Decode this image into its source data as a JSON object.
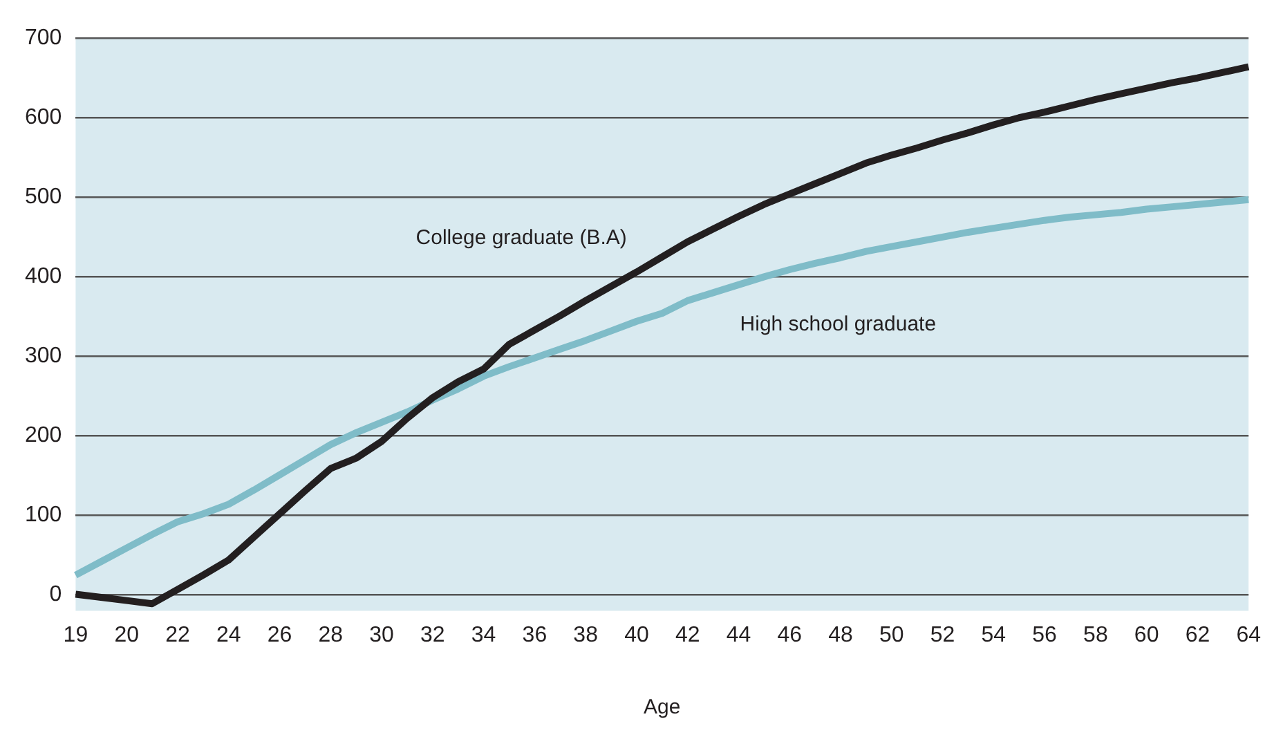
{
  "chart_data": {
    "type": "line",
    "xlabel": "Age",
    "categories": [
      "19",
      null,
      "20",
      null,
      "22",
      null,
      "24",
      null,
      "26",
      null,
      "28",
      null,
      "30",
      null,
      "32",
      null,
      "34",
      null,
      "36",
      null,
      "38",
      null,
      "40",
      null,
      "42",
      null,
      "44",
      null,
      "46",
      null,
      "48",
      null,
      "50",
      null,
      "52",
      null,
      "54",
      null,
      "56",
      null,
      "58",
      null,
      "60",
      null,
      "62",
      null,
      "64"
    ],
    "series": [
      {
        "name": "College graduate (B.A)",
        "color": "#231f20",
        "values": [
          1,
          -3,
          -7,
          -11,
          7,
          25,
          44,
          73,
          102,
          131,
          159,
          172,
          193,
          222,
          248,
          268,
          284,
          315,
          333,
          351,
          370,
          388,
          406,
          425,
          444,
          460,
          476,
          491,
          504,
          517,
          530,
          543,
          553,
          562,
          572,
          581,
          591,
          600,
          607,
          615,
          623,
          630,
          637,
          644,
          650,
          657,
          664
        ]
      },
      {
        "name": "High school graduate",
        "color": "#7fbcc8",
        "values": [
          25,
          42,
          59,
          76,
          92,
          102,
          114,
          132,
          151,
          170,
          189,
          204,
          217,
          230,
          245,
          259,
          275,
          287,
          298,
          309,
          320,
          332,
          344,
          354,
          370,
          380,
          390,
          400,
          409,
          417,
          424,
          432,
          438,
          444,
          450,
          456,
          461,
          466,
          471,
          475,
          478,
          481,
          485,
          488,
          491,
          494,
          497
        ]
      }
    ],
    "ylim": [
      -20,
      700
    ],
    "yticks": [
      0,
      100,
      200,
      300,
      400,
      500,
      600,
      700
    ],
    "grid": "y",
    "legend": false,
    "marker": "none",
    "line_style": "solid"
  }
}
